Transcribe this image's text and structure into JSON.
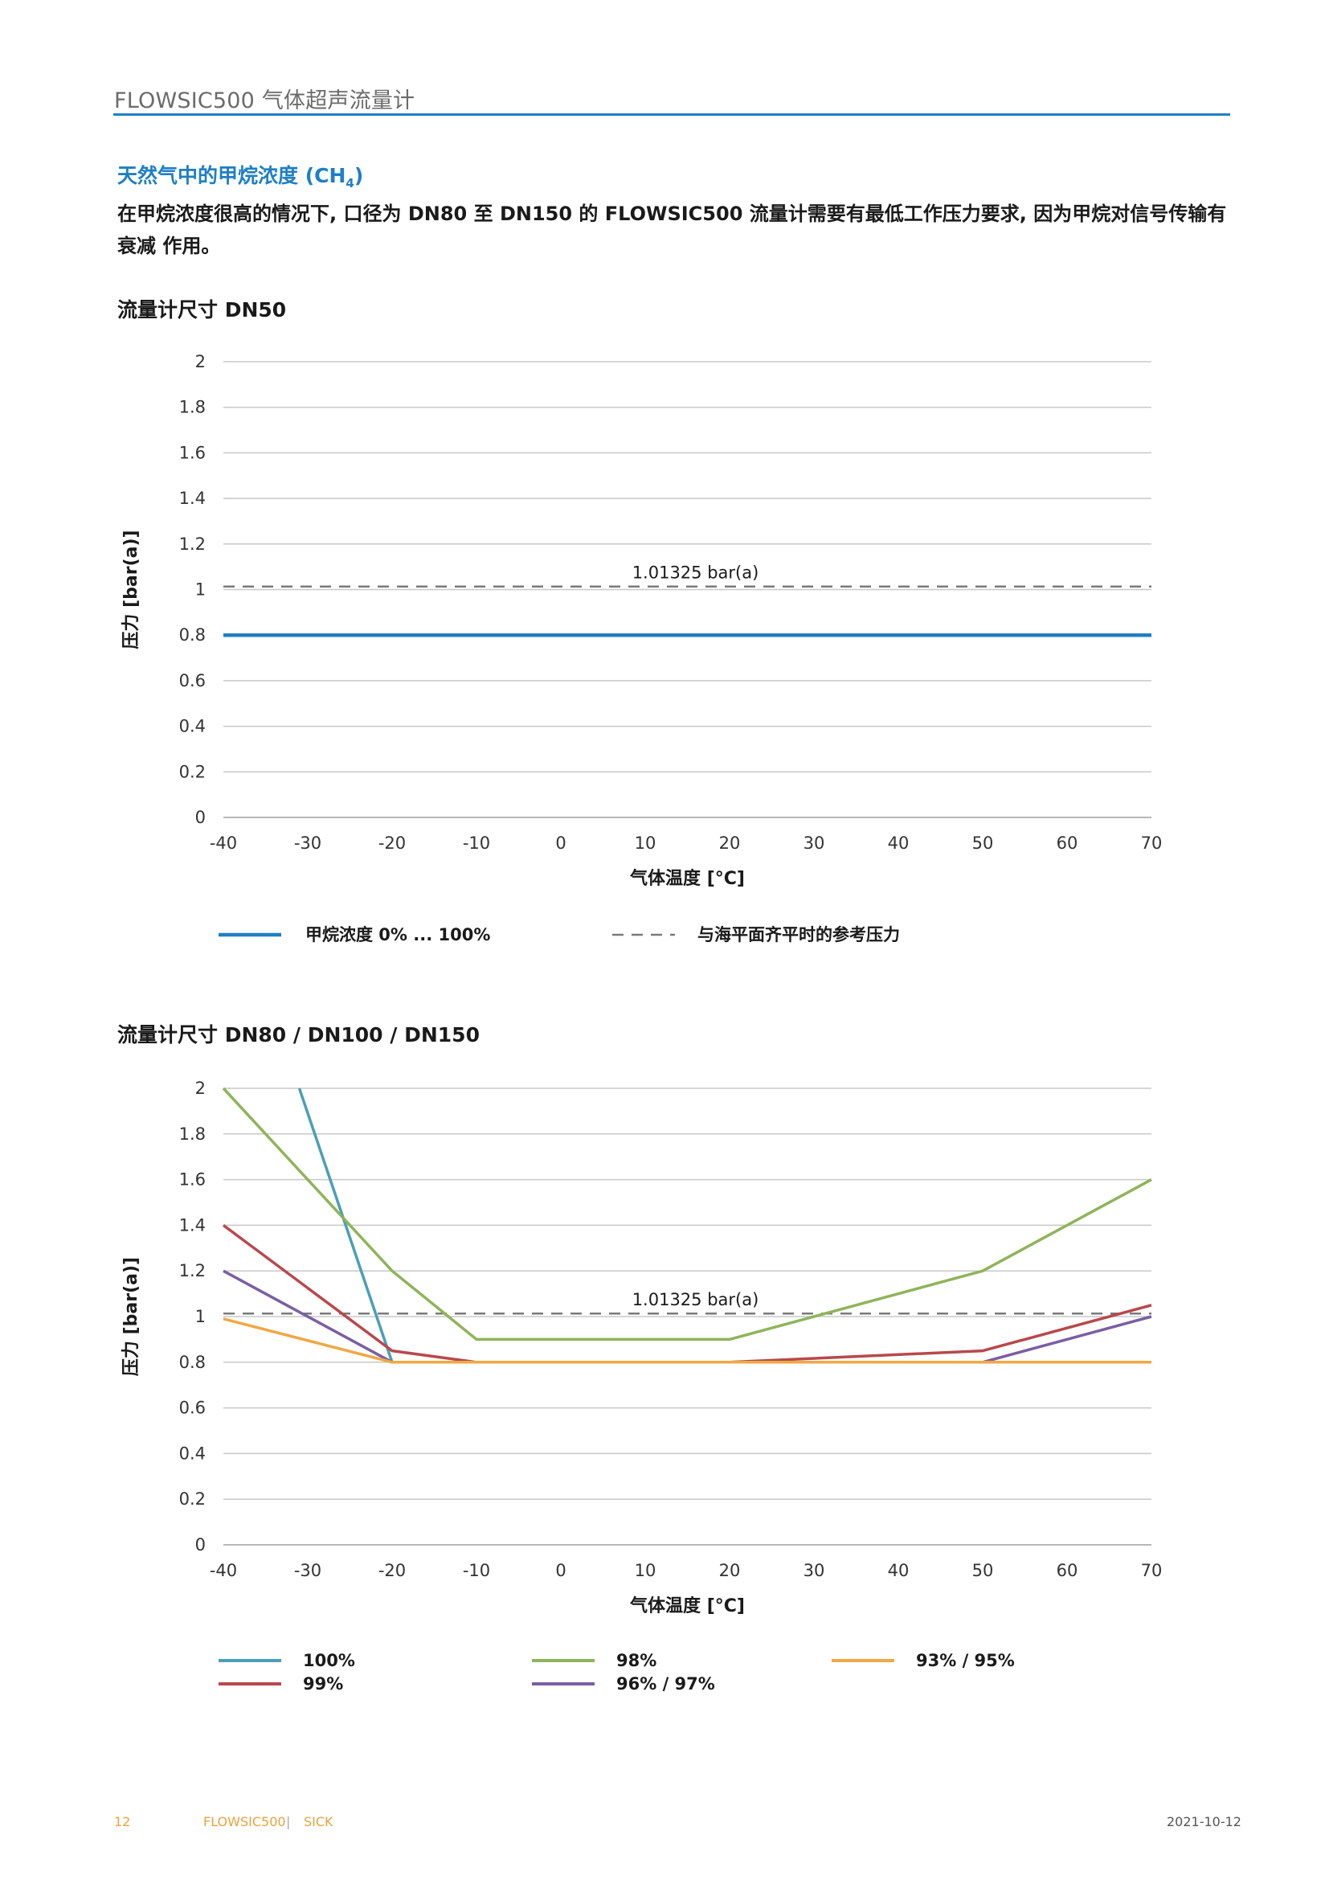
{
  "header": {
    "title": "FLOWSIC500 气体超声流量计"
  },
  "section": {
    "title": "天然气中的甲烷浓度 (CH",
    "title_sub": "4",
    "title_end": ")"
  },
  "intro": {
    "line1": "在甲烷浓度很高的情况下, 口径为 DN80 至 DN150 的 FLOWSIC500 流量计需要有最低工作压力要求, 因为甲烷对信号传输有",
    "line2": "衰减 作用。"
  },
  "colors": {
    "accent": "#1f7fc4",
    "grid": "#c8c8c8",
    "reference": "#7a7a7a"
  },
  "chart_data": [
    {
      "type": "line",
      "title": "流量计尺寸 DN50",
      "xlabel": "气体温度 [°C]",
      "ylabel": "压力 [bar(a)]",
      "xlim": [
        -40,
        70
      ],
      "ylim": [
        0,
        2
      ],
      "xticks": [
        -40,
        -30,
        -20,
        -10,
        0,
        10,
        20,
        30,
        40,
        50,
        60,
        70
      ],
      "yticks": [
        "0",
        "0.2",
        "0.4",
        "0.6",
        "0.8",
        "1",
        "1.2",
        "1.4",
        "1.6",
        "1.8",
        "2"
      ],
      "grid": true,
      "legend_position": "bottom",
      "reference": {
        "value": 1.01325,
        "label": "1.01325 bar(a)",
        "name": "与海平面齐平时的参考压力",
        "color": "#7a7a7a"
      },
      "series": [
        {
          "name": "甲烷浓度 0% ... 100%",
          "color": "#1f7fc4",
          "x": [
            -40,
            70
          ],
          "y": [
            0.8,
            0.8
          ]
        }
      ]
    },
    {
      "type": "line",
      "title": "流量计尺寸 DN80 / DN100 / DN150",
      "xlabel": "气体温度 [°C]",
      "ylabel": "压力 [bar(a)]",
      "xlim": [
        -40,
        70
      ],
      "ylim": [
        0,
        2
      ],
      "xticks": [
        -40,
        -30,
        -20,
        -10,
        0,
        10,
        20,
        30,
        40,
        50,
        60,
        70
      ],
      "yticks": [
        "0",
        "0.2",
        "0.4",
        "0.6",
        "0.8",
        "1",
        "1.2",
        "1.4",
        "1.6",
        "1.8",
        "2"
      ],
      "grid": true,
      "legend_position": "bottom",
      "reference": {
        "value": 1.01325,
        "label": "1.01325 bar(a)",
        "color": "#7a7a7a"
      },
      "series": [
        {
          "name": "100%",
          "color": "#4a9fb8",
          "x": [
            -31,
            -20
          ],
          "y": [
            2.0,
            0.8
          ]
        },
        {
          "name": "99%",
          "color": "#b8484c",
          "x": [
            -40,
            -20,
            -10,
            20,
            50,
            70
          ],
          "y": [
            1.4,
            0.85,
            0.8,
            0.8,
            0.85,
            1.05
          ]
        },
        {
          "name": "98%",
          "color": "#8fb45a",
          "x": [
            -40,
            -20,
            -10,
            20,
            50,
            70
          ],
          "y": [
            2.0,
            1.2,
            0.9,
            0.9,
            1.2,
            1.6
          ]
        },
        {
          "name": "96% / 97%",
          "color": "#7a5fa3",
          "x": [
            -40,
            -20,
            50,
            70
          ],
          "y": [
            1.2,
            0.8,
            0.8,
            1.0
          ]
        },
        {
          "name": "93% / 95%",
          "color": "#f0a844",
          "x": [
            -40,
            -20,
            70
          ],
          "y": [
            0.99,
            0.8,
            0.8
          ]
        }
      ]
    }
  ],
  "footer": {
    "page": "12",
    "product": "FLOWSIC500",
    "separator": "|",
    "brand": "SICK",
    "date": "2021-10-12"
  }
}
